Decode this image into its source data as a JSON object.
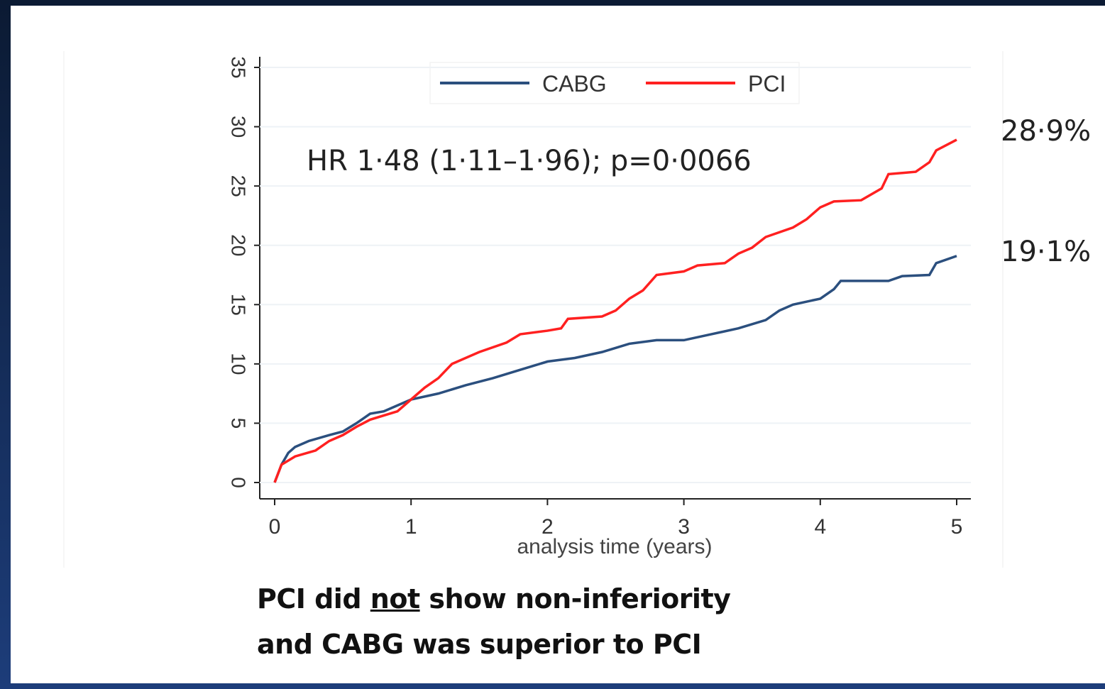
{
  "chart_data": {
    "type": "line",
    "x_label": "analysis time (years)",
    "annotation": "HR 1·48 (1·11–1·96); p=0·0066",
    "end_labels": [
      "28·9%",
      "19·1%"
    ],
    "xlim": [
      0,
      5
    ],
    "xticks": [
      0,
      1,
      2,
      3,
      4,
      5
    ],
    "ylim": [
      0,
      35
    ],
    "yticks": [
      0,
      5,
      10,
      15,
      20,
      25,
      30,
      35
    ],
    "grid": true,
    "legend": "top",
    "series": [
      {
        "name": "CABG",
        "color": "#2b4f7e",
        "x": [
          0,
          0.05,
          0.1,
          0.15,
          0.25,
          0.4,
          0.5,
          0.6,
          0.7,
          0.8,
          0.9,
          1,
          1.2,
          1.4,
          1.6,
          1.8,
          2,
          2.2,
          2.4,
          2.6,
          2.8,
          3,
          3.2,
          3.4,
          3.6,
          3.7,
          3.8,
          4,
          4.1,
          4.15,
          4.5,
          4.6,
          4.8,
          4.85,
          5
        ],
        "values": [
          0,
          1.5,
          2.5,
          3,
          3.5,
          4,
          4.3,
          5,
          5.8,
          6,
          6.5,
          7,
          7.5,
          8.2,
          8.8,
          9.5,
          10.2,
          10.5,
          11,
          11.7,
          12,
          12,
          12.5,
          13,
          13.7,
          14.5,
          15,
          15.5,
          16.3,
          17,
          17,
          17.4,
          17.5,
          18.5,
          19.1
        ]
      },
      {
        "name": "PCI",
        "color": "#ff2020",
        "x": [
          0,
          0.05,
          0.15,
          0.3,
          0.4,
          0.5,
          0.6,
          0.7,
          0.9,
          1,
          1.1,
          1.2,
          1.3,
          1.5,
          1.7,
          1.8,
          2,
          2.1,
          2.15,
          2.4,
          2.5,
          2.6,
          2.7,
          2.8,
          3,
          3.1,
          3.3,
          3.4,
          3.5,
          3.6,
          3.8,
          3.9,
          4,
          4.1,
          4.3,
          4.45,
          4.5,
          4.7,
          4.8,
          4.85,
          5
        ],
        "values": [
          0,
          1.5,
          2.2,
          2.7,
          3.5,
          4,
          4.7,
          5.3,
          6,
          7,
          8,
          8.8,
          10,
          11,
          11.8,
          12.5,
          12.8,
          13,
          13.8,
          14,
          14.5,
          15.5,
          16.2,
          17.5,
          17.8,
          18.3,
          18.5,
          19.3,
          19.8,
          20.7,
          21.5,
          22.2,
          23.2,
          23.7,
          23.8,
          24.8,
          26,
          26.2,
          27,
          28,
          28.9
        ]
      }
    ]
  },
  "caption": {
    "line1": [
      "PCI did",
      "not",
      "show non-inferiority"
    ],
    "line2": "and CABG was superior to PCI"
  }
}
